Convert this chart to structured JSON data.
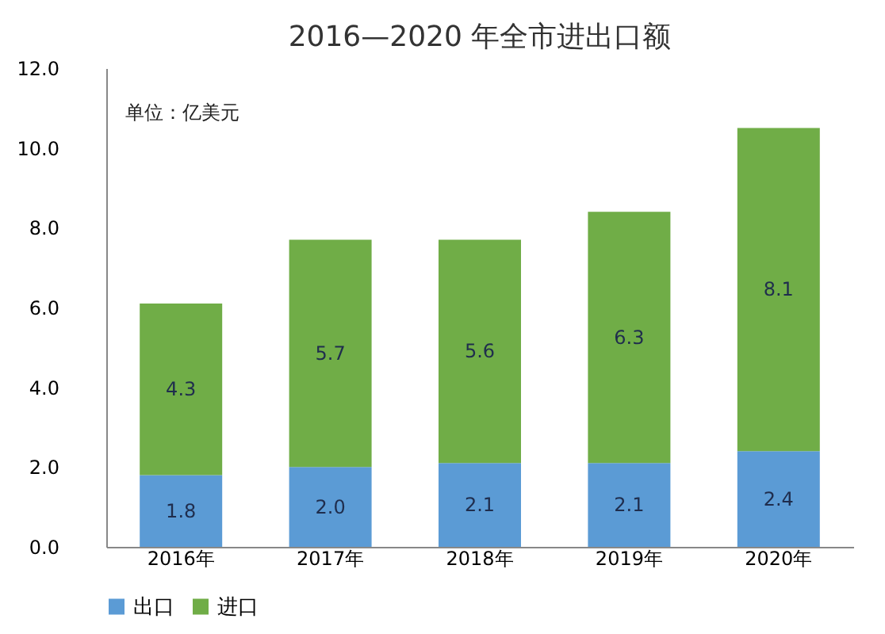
{
  "chart_data": {
    "type": "bar",
    "title": "2016—2020 年全市进出口额",
    "stacked": true,
    "legend": "bottom",
    "grid": false,
    "categories": [
      "2016年",
      "2017年",
      "2018年",
      "2019年",
      "2020年"
    ],
    "series": [
      {
        "name": "出口",
        "color": "#5b9bd5",
        "values": [
          1.8,
          2.0,
          2.1,
          2.1,
          2.4
        ],
        "value_labels": [
          "1.8",
          "2.0",
          "2.1",
          "2.1",
          "2.4"
        ]
      },
      {
        "name": "进口",
        "color": "#70ad47",
        "values": [
          4.3,
          5.7,
          5.6,
          6.3,
          8.1
        ],
        "value_labels": [
          "4.3",
          "5.7",
          "5.6",
          "6.3",
          "8.1"
        ]
      }
    ],
    "ylim": [
      0,
      12
    ],
    "yticks": [
      {
        "value": 0,
        "label": "0.0"
      },
      {
        "value": 2,
        "label": "2.0"
      },
      {
        "value": 4,
        "label": "4.0"
      },
      {
        "value": 6,
        "label": "6.0"
      },
      {
        "value": 8,
        "label": "8.0"
      },
      {
        "value": 10,
        "label": "10.0"
      },
      {
        "value": 12,
        "label": "12.0"
      }
    ],
    "annotations": [
      "单位：亿美元"
    ]
  }
}
